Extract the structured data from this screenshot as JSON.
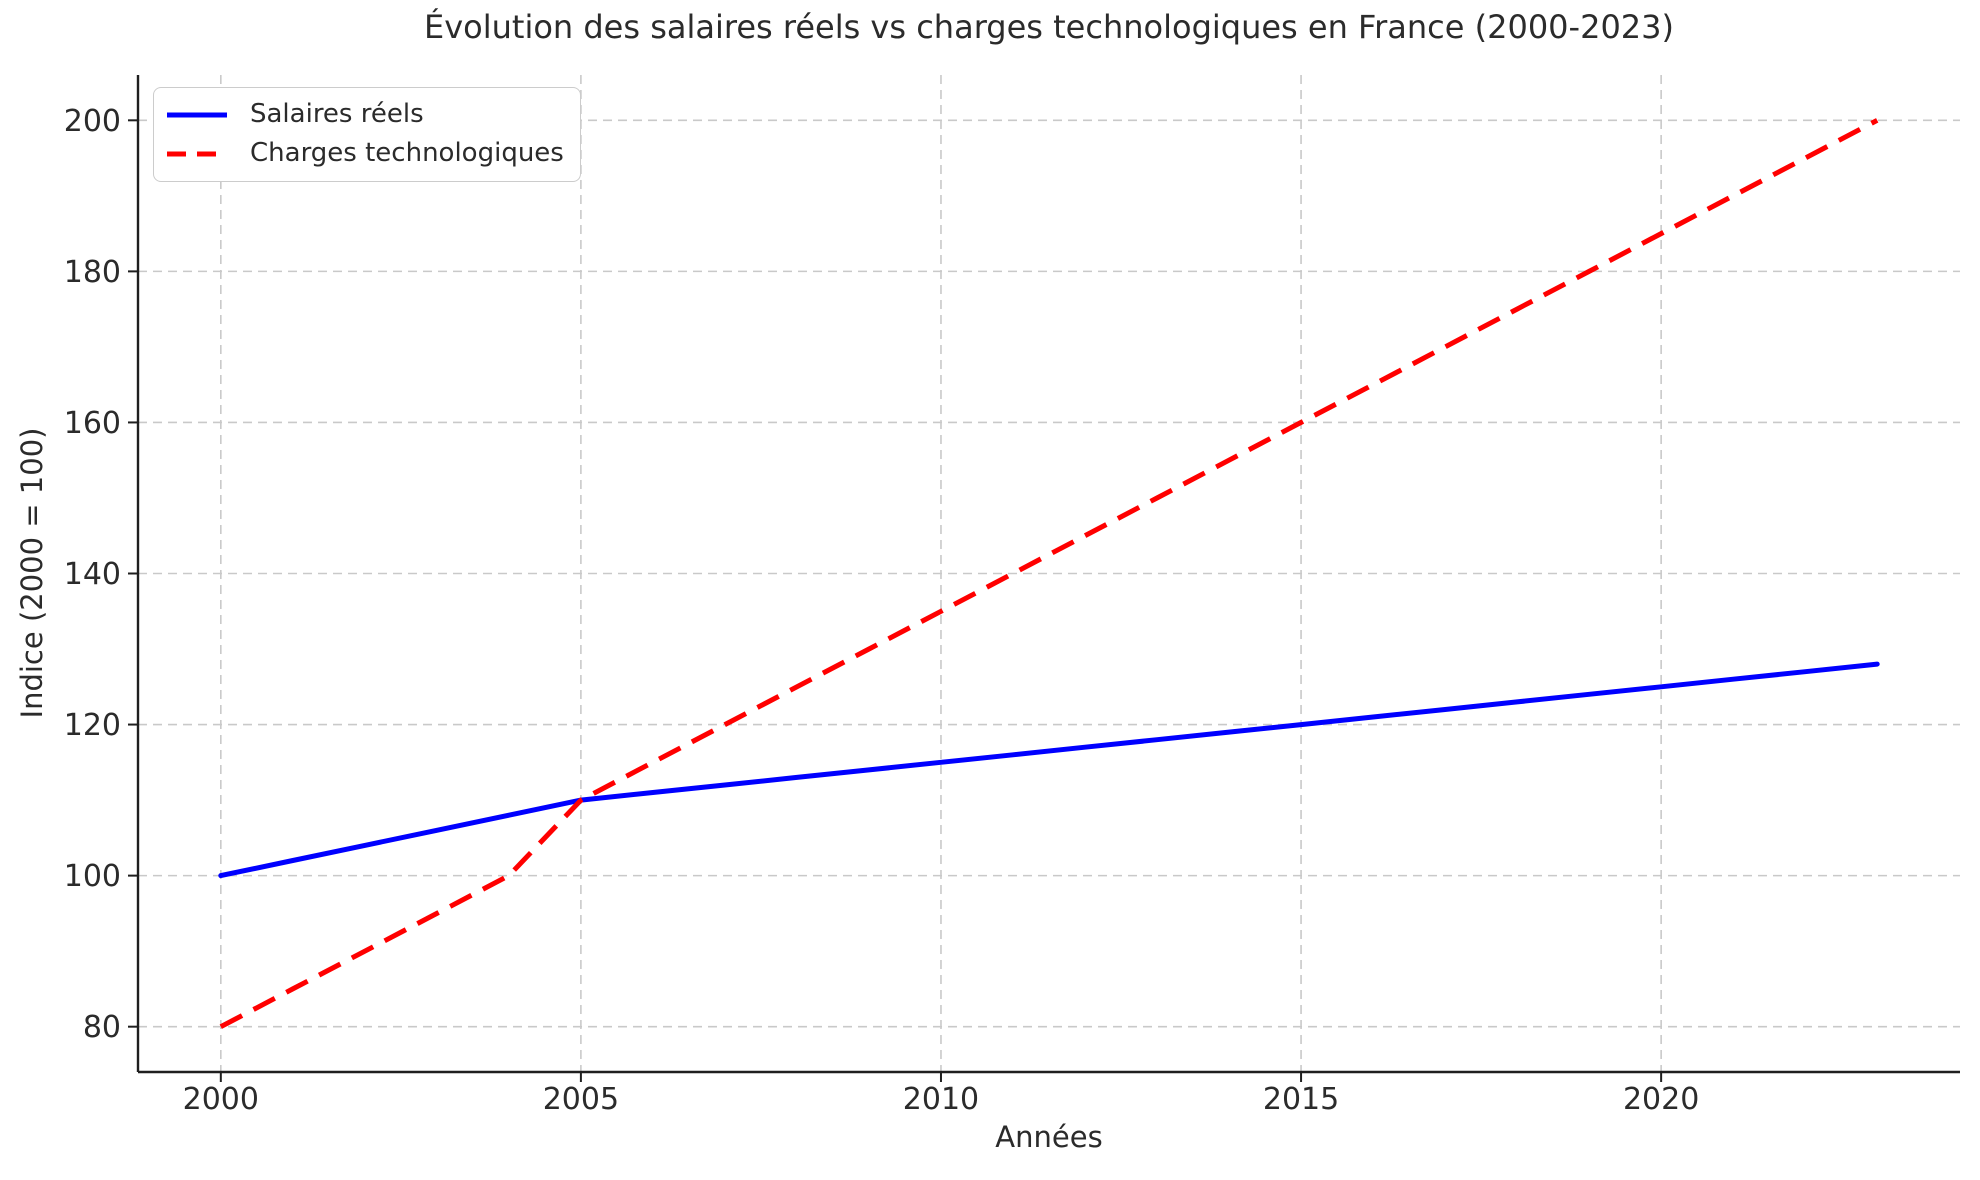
{
  "chart_data": {
    "type": "line",
    "title": "Évolution des salaires réels vs charges technologiques en France (2000-2023)",
    "xlabel": "Années",
    "ylabel": "Indice (2000 = 100)",
    "x": [
      2000,
      2001,
      2002,
      2003,
      2004,
      2005,
      2006,
      2007,
      2008,
      2009,
      2010,
      2011,
      2012,
      2013,
      2014,
      2015,
      2016,
      2017,
      2018,
      2019,
      2020,
      2021,
      2022,
      2023
    ],
    "series": [
      {
        "name": "Salaires réels",
        "color": "#0000ff",
        "style": "solid",
        "values": [
          100,
          102,
          104,
          106,
          108,
          110,
          111,
          112,
          113,
          114,
          115,
          116,
          117,
          118,
          119,
          120,
          121,
          122,
          123,
          124,
          125,
          126,
          127,
          128
        ]
      },
      {
        "name": "Charges technologiques",
        "color": "#ff0000",
        "style": "dashed",
        "values": [
          80,
          85,
          90,
          95,
          100,
          110,
          115,
          120,
          125,
          130,
          135,
          140,
          145,
          150,
          155,
          160,
          165,
          170,
          175,
          180,
          185,
          190,
          195,
          200
        ]
      }
    ],
    "xticks": [
      2000,
      2005,
      2010,
      2015,
      2020
    ],
    "yticks": [
      80,
      100,
      120,
      140,
      160,
      180,
      200
    ],
    "xlim": [
      1998.85,
      2024.15
    ],
    "ylim": [
      74,
      206
    ],
    "grid": true,
    "legend_position": "upper left",
    "colors": {
      "grid": "#c9c9c9",
      "spine": "#1f1f1f",
      "text": "#2b2b2b"
    }
  }
}
